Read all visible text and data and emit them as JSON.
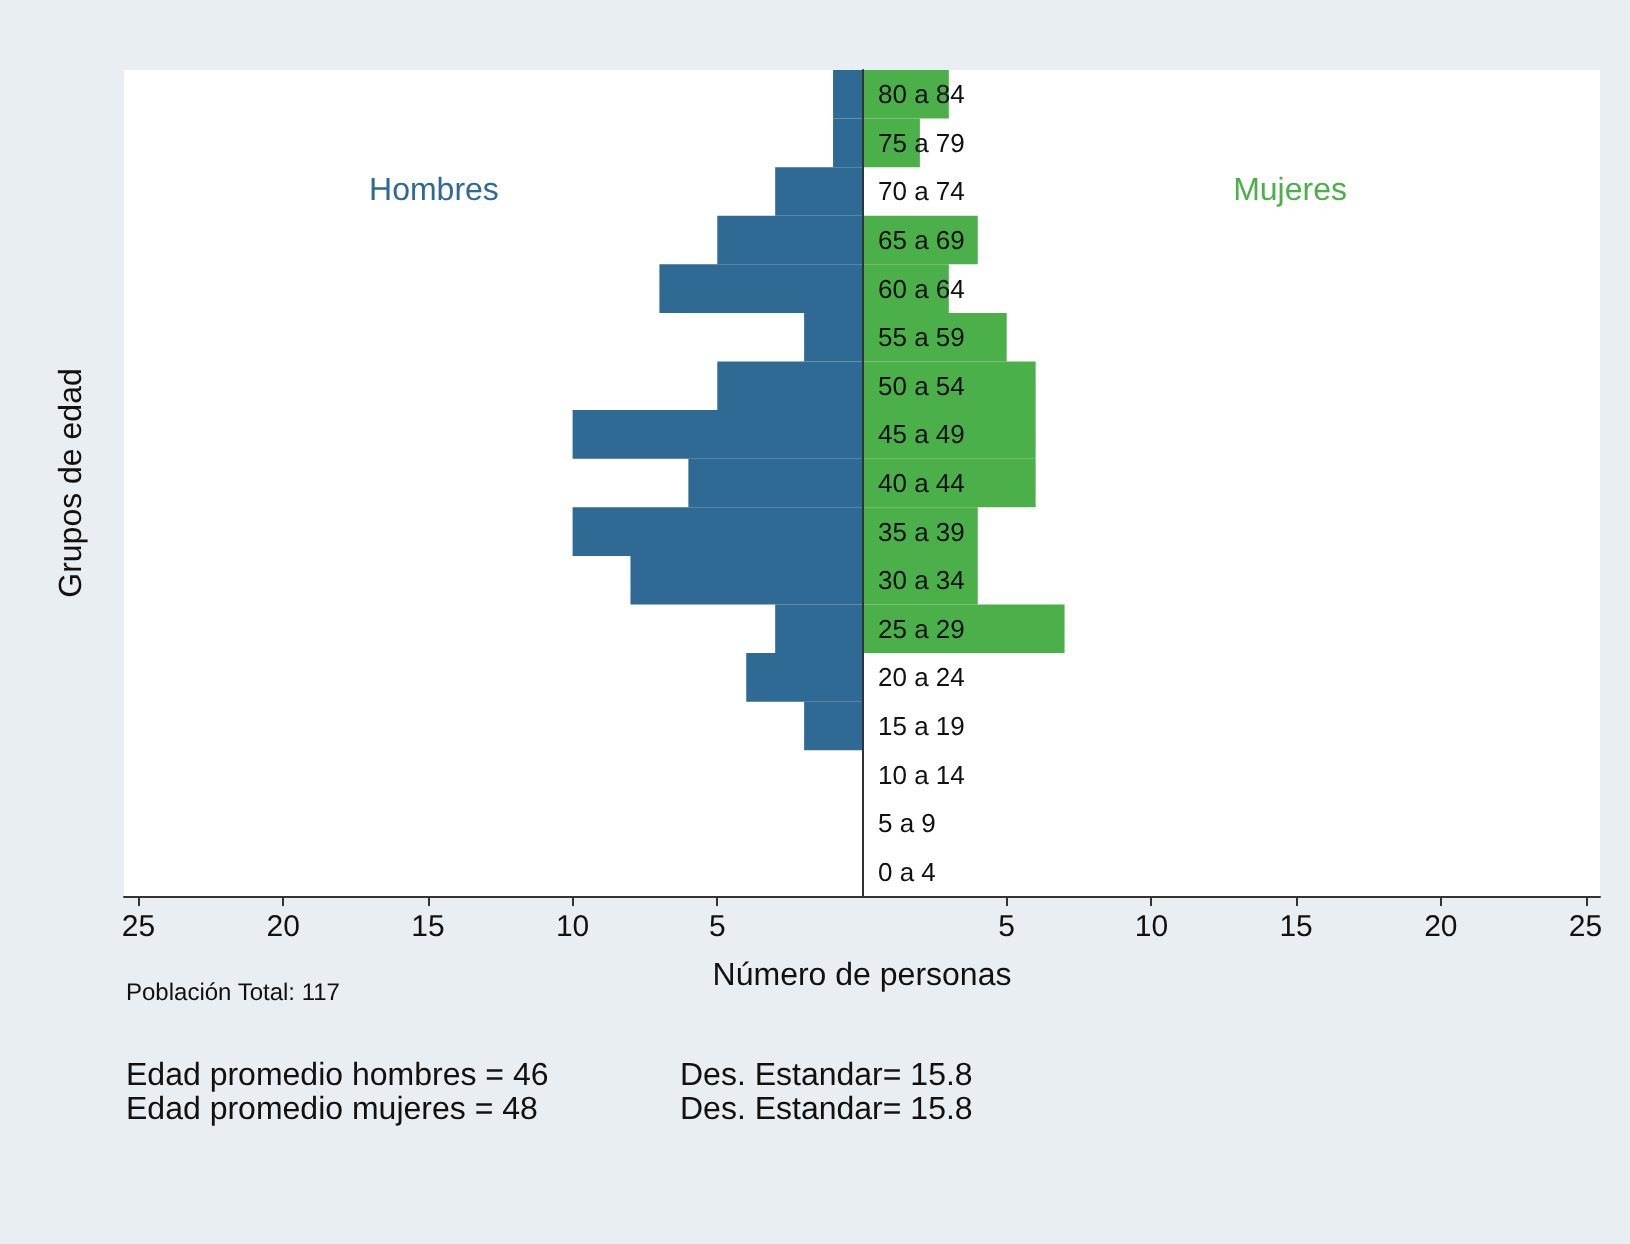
{
  "chart_data": {
    "type": "bar",
    "orientation": "horizontal",
    "xlabel": "Número de personas",
    "ylabel": "Grupos de edad",
    "categories": [
      "80 a 84",
      "75 a 79",
      "70 a 74",
      "65 a 69",
      "60 a 64",
      "55 a 59",
      "50 a 54",
      "45 a 49",
      "40 a 44",
      "35 a 39",
      "30 a 34",
      "25 a 29",
      "20 a 24",
      "15 a 19",
      "10 a 14",
      "5 a 9",
      "0 a 4"
    ],
    "series": [
      {
        "name": "Hombres",
        "color": "#2f6a95",
        "values": [
          -1,
          -1,
          -3,
          -5,
          -7,
          -2,
          -5,
          -10,
          -6,
          -10,
          -8,
          -3,
          -4,
          -2,
          0,
          0,
          0
        ]
      },
      {
        "name": "Mujeres",
        "color": "#4cb04a",
        "values": [
          3,
          2,
          0,
          4,
          3,
          5,
          6,
          6,
          6,
          4,
          4,
          7,
          0,
          0,
          0,
          0,
          0
        ]
      }
    ],
    "xlim": [
      -25.5,
      25.5
    ],
    "xticks": [
      {
        "value": -25,
        "label": "25"
      },
      {
        "value": -20,
        "label": "20"
      },
      {
        "value": -15,
        "label": "15"
      },
      {
        "value": -10,
        "label": "10"
      },
      {
        "value": -5,
        "label": "5"
      },
      5,
      10,
      15,
      20,
      25
    ],
    "grid": false,
    "legend": false,
    "stacked": true,
    "annotations": [
      "Población Total: 117",
      "Edad promedio hombres = 46",
      "Des. Estandar= 15.8",
      "Edad promedio mujeres = 48",
      "Des. Estandar= 15.8"
    ]
  }
}
